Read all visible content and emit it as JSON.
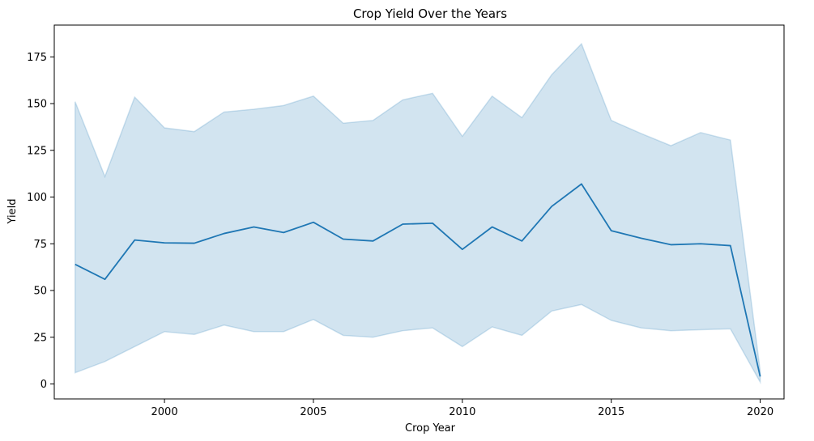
{
  "chart_data": {
    "type": "line",
    "title": "Crop Yield Over the Years",
    "xlabel": "Crop Year",
    "ylabel": "Yield",
    "xlim": [
      1996.3,
      2020.8
    ],
    "ylim": [
      -8,
      192
    ],
    "x_ticks": [
      2000,
      2005,
      2010,
      2015,
      2020
    ],
    "y_ticks": [
      0,
      25,
      50,
      75,
      100,
      125,
      150,
      175
    ],
    "grid": false,
    "legend": "none",
    "colors": {
      "line": "#1f77b4",
      "band": "#1f77b4"
    },
    "x": [
      1997,
      1998,
      1999,
      2000,
      2001,
      2002,
      2003,
      2004,
      2005,
      2006,
      2007,
      2008,
      2009,
      2010,
      2011,
      2012,
      2013,
      2014,
      2015,
      2016,
      2017,
      2018,
      2019,
      2020
    ],
    "series": [
      {
        "values": [
          64,
          56,
          77,
          75.5,
          75.3,
          80.5,
          84,
          81,
          86.5,
          77.5,
          76.5,
          85.5,
          86,
          72,
          84,
          76.5,
          95,
          107,
          82,
          78,
          74.5,
          75,
          74,
          4
        ],
        "ci_lower": [
          6,
          12,
          20,
          28,
          26.5,
          31.5,
          28,
          28,
          34.5,
          26,
          25,
          28.5,
          30,
          20,
          30.5,
          26,
          39,
          42.5,
          34,
          30,
          28.5,
          29,
          29.5,
          1
        ],
        "ci_upper": [
          151,
          111,
          153.5,
          137,
          135,
          145.5,
          147,
          149,
          154,
          139.5,
          141,
          152,
          155.5,
          132.5,
          154,
          142.5,
          165.5,
          182,
          141,
          134,
          127.5,
          134.5,
          130.5,
          7
        ]
      }
    ]
  }
}
